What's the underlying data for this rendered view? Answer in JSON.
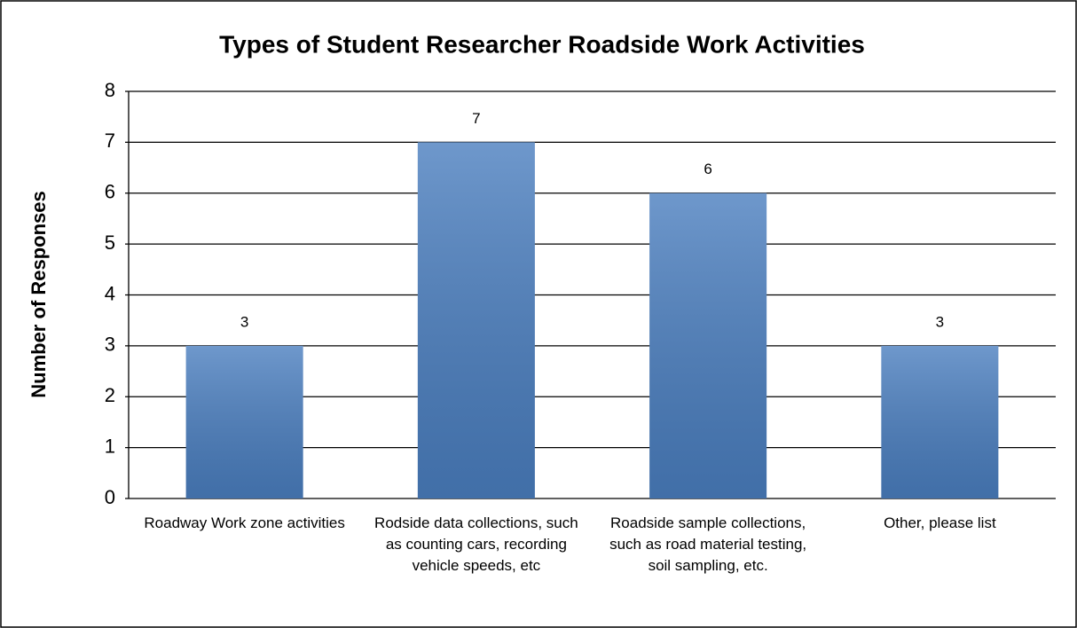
{
  "chart_data": {
    "type": "bar",
    "title": "Types of Student Researcher Roadside Work Activities",
    "y_label": "Number of Responses",
    "categories": [
      "Roadway Work zone activities",
      "Rodside data collections, such as counting cars, recording vehicle speeds, etc",
      "Roadside sample collections, such as road material testing, soil sampling, etc.",
      "Other, please list"
    ],
    "values": [
      3,
      7,
      6,
      3
    ],
    "color": "#4a7ebf",
    "ylim": [
      0,
      8
    ],
    "yticks": [
      0,
      1,
      2,
      3,
      4,
      5,
      6,
      7,
      8
    ],
    "grid": true
  }
}
